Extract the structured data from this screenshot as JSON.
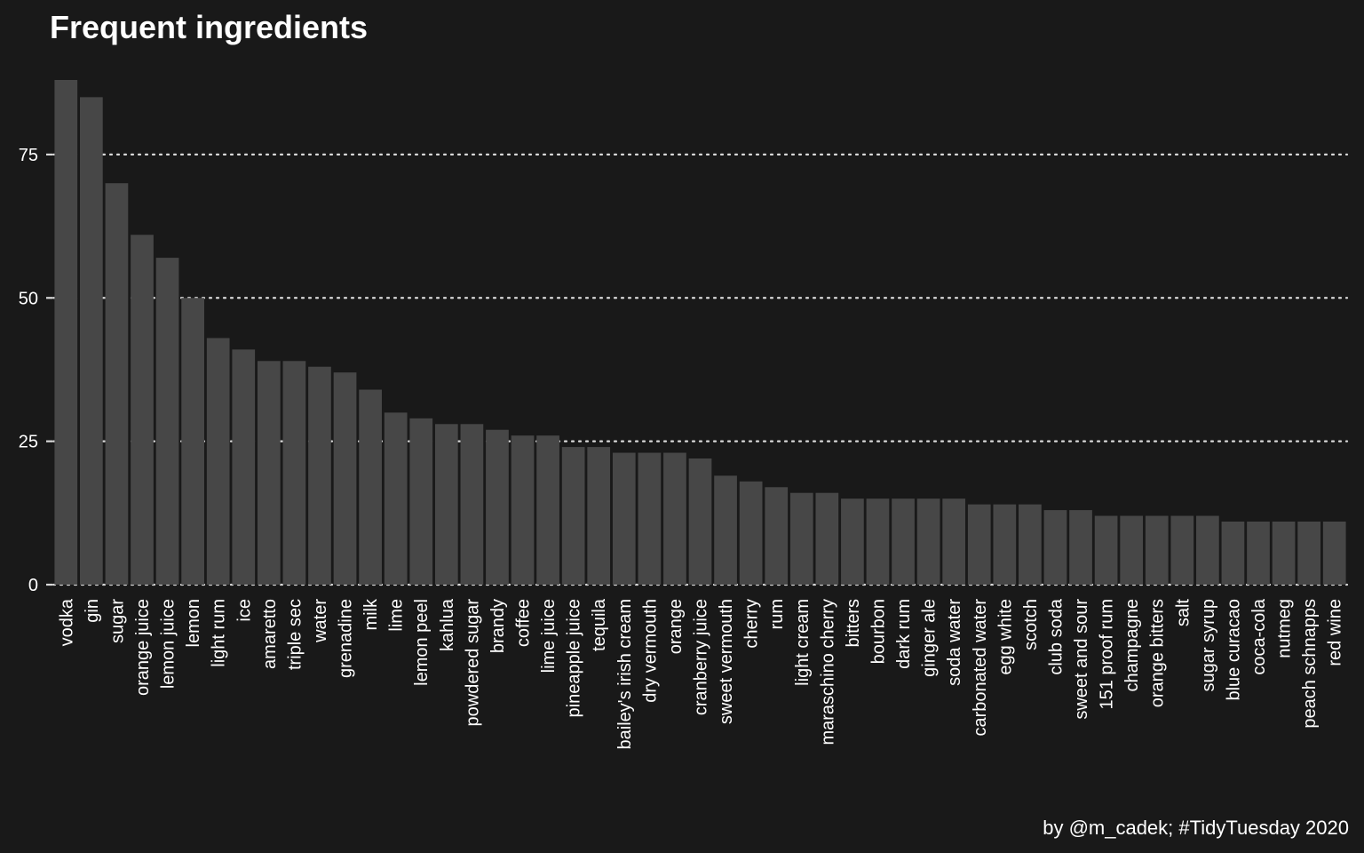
{
  "chart_data": {
    "type": "bar",
    "title": "Frequent ingredients",
    "caption": "by @m_cadek; #TidyTuesday 2020",
    "xlabel": "",
    "ylabel": "",
    "ylim": [
      0,
      88
    ],
    "yticks": [
      0,
      25,
      50,
      75
    ],
    "grid": "horizontal dotted",
    "legend": "none",
    "colors": {
      "background": "#191919",
      "bar": "#474747",
      "grid": "#d9d9d9",
      "text": "#ffffff"
    },
    "categories": [
      "vodka",
      "gin",
      "sugar",
      "orange juice",
      "lemon juice",
      "lemon",
      "light rum",
      "ice",
      "amaretto",
      "triple sec",
      "water",
      "grenadine",
      "milk",
      "lime",
      "lemon peel",
      "kahlua",
      "powdered sugar",
      "brandy",
      "coffee",
      "lime juice",
      "pineapple juice",
      "tequila",
      "bailey's irish cream",
      "dry vermouth",
      "orange",
      "cranberry juice",
      "sweet vermouth",
      "cherry",
      "rum",
      "light cream",
      "maraschino cherry",
      "bitters",
      "bourbon",
      "dark rum",
      "ginger ale",
      "soda water",
      "carbonated water",
      "egg white",
      "scotch",
      "club soda",
      "sweet and sour",
      "151 proof rum",
      "champagne",
      "orange bitters",
      "salt",
      "sugar syrup",
      "blue curacao",
      "coca-cola",
      "nutmeg",
      "peach schnapps",
      "red wine"
    ],
    "values": [
      88,
      85,
      70,
      61,
      57,
      50,
      43,
      41,
      39,
      39,
      38,
      37,
      34,
      30,
      29,
      28,
      28,
      27,
      26,
      26,
      24,
      24,
      23,
      23,
      23,
      22,
      19,
      18,
      17,
      16,
      16,
      15,
      15,
      15,
      15,
      15,
      14,
      14,
      14,
      13,
      13,
      12,
      12,
      12,
      12,
      12,
      11,
      11,
      11,
      11,
      11
    ]
  }
}
